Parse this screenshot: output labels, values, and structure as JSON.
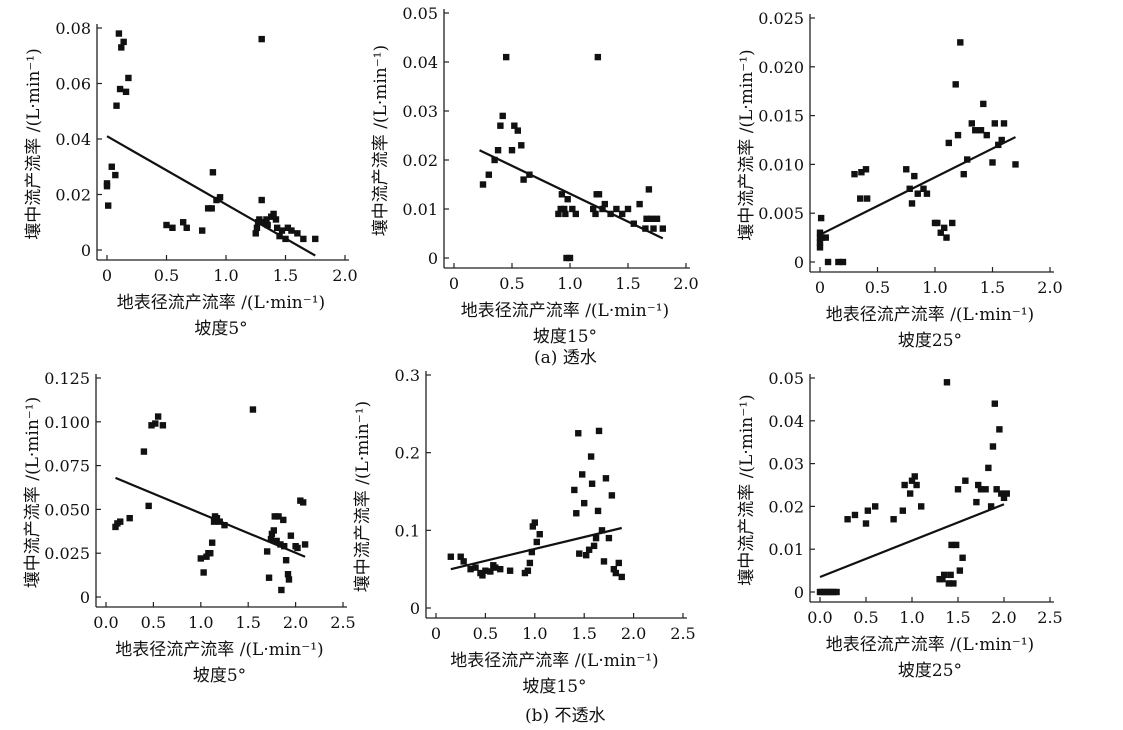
{
  "groups": [
    {
      "caption": "(a) 透水"
    },
    {
      "caption": "(b) 不透水"
    }
  ],
  "chart_data": [
    {
      "type": "scatter",
      "xlabel": "地表径流产流率 /(L·min⁻¹)",
      "ylabel": "壤中流产流率 /(L·min⁻¹)",
      "subcaption": "坡度5°",
      "xlim": [
        0,
        2.0
      ],
      "ylim": [
        0,
        0.08
      ],
      "xticks": [
        0,
        0.5,
        1.0,
        1.5,
        2.0
      ],
      "xtick_labels": [
        "0",
        "0.5",
        "1.0",
        "1.5",
        "2.0"
      ],
      "yticks": [
        0,
        0.02,
        0.04,
        0.06,
        0.08
      ],
      "ytick_labels": [
        "0",
        "0.02",
        "0.04",
        "0.06",
        "0.08"
      ],
      "points": [
        [
          0.0,
          0.024
        ],
        [
          0.0,
          0.023
        ],
        [
          0.01,
          0.016
        ],
        [
          0.04,
          0.03
        ],
        [
          0.07,
          0.027
        ],
        [
          0.08,
          0.052
        ],
        [
          0.1,
          0.078
        ],
        [
          0.11,
          0.058
        ],
        [
          0.12,
          0.073
        ],
        [
          0.14,
          0.075
        ],
        [
          0.16,
          0.057
        ],
        [
          0.18,
          0.062
        ],
        [
          0.5,
          0.009
        ],
        [
          0.55,
          0.008
        ],
        [
          0.64,
          0.01
        ],
        [
          0.67,
          0.008
        ],
        [
          0.8,
          0.007
        ],
        [
          0.85,
          0.015
        ],
        [
          0.88,
          0.015
        ],
        [
          0.89,
          0.028
        ],
        [
          0.92,
          0.018
        ],
        [
          0.95,
          0.019
        ],
        [
          1.25,
          0.006
        ],
        [
          1.26,
          0.008
        ],
        [
          1.27,
          0.01
        ],
        [
          1.28,
          0.011
        ],
        [
          1.3,
          0.018
        ],
        [
          1.3,
          0.076
        ],
        [
          1.32,
          0.01
        ],
        [
          1.34,
          0.011
        ],
        [
          1.35,
          0.009
        ],
        [
          1.38,
          0.012
        ],
        [
          1.4,
          0.013
        ],
        [
          1.42,
          0.011
        ],
        [
          1.43,
          0.008
        ],
        [
          1.45,
          0.005
        ],
        [
          1.47,
          0.007
        ],
        [
          1.5,
          0.004
        ],
        [
          1.52,
          0.008
        ],
        [
          1.55,
          0.007
        ],
        [
          1.6,
          0.006
        ],
        [
          1.65,
          0.004
        ],
        [
          1.75,
          0.004
        ]
      ],
      "trendline": [
        [
          0.0,
          0.041
        ],
        [
          1.75,
          -0.002
        ]
      ]
    },
    {
      "type": "scatter",
      "xlabel": "地表径流产流率 /(L·min⁻¹)",
      "ylabel": "壤中流产流率 /(L·min⁻¹)",
      "subcaption": "坡度15°",
      "xlim": [
        0,
        2.0
      ],
      "ylim": [
        0,
        0.05
      ],
      "xticks": [
        0,
        0.5,
        1.0,
        1.5,
        2.0
      ],
      "xtick_labels": [
        "0",
        "0.5",
        "1.0",
        "1.5",
        "2.0"
      ],
      "yticks": [
        0,
        0.01,
        0.02,
        0.03,
        0.04,
        0.05
      ],
      "ytick_labels": [
        "0",
        "0.01",
        "0.02",
        "0.03",
        "0.04",
        "0.05"
      ],
      "points": [
        [
          0.25,
          0.015
        ],
        [
          0.3,
          0.017
        ],
        [
          0.35,
          0.02
        ],
        [
          0.38,
          0.022
        ],
        [
          0.4,
          0.027
        ],
        [
          0.42,
          0.029
        ],
        [
          0.45,
          0.041
        ],
        [
          0.5,
          0.022
        ],
        [
          0.52,
          0.027
        ],
        [
          0.55,
          0.026
        ],
        [
          0.58,
          0.023
        ],
        [
          0.6,
          0.016
        ],
        [
          0.65,
          0.017
        ],
        [
          0.9,
          0.009
        ],
        [
          0.92,
          0.01
        ],
        [
          0.93,
          0.013
        ],
        [
          0.95,
          0.01
        ],
        [
          0.96,
          0.009
        ],
        [
          0.97,
          0.0
        ],
        [
          0.98,
          0.012
        ],
        [
          1.0,
          0.0
        ],
        [
          1.02,
          0.01
        ],
        [
          1.05,
          0.009
        ],
        [
          1.2,
          0.01
        ],
        [
          1.22,
          0.009
        ],
        [
          1.23,
          0.013
        ],
        [
          1.24,
          0.041
        ],
        [
          1.25,
          0.013
        ],
        [
          1.28,
          0.01
        ],
        [
          1.3,
          0.011
        ],
        [
          1.35,
          0.009
        ],
        [
          1.4,
          0.01
        ],
        [
          1.45,
          0.009
        ],
        [
          1.5,
          0.01
        ],
        [
          1.55,
          0.007
        ],
        [
          1.6,
          0.011
        ],
        [
          1.65,
          0.006
        ],
        [
          1.66,
          0.008
        ],
        [
          1.68,
          0.014
        ],
        [
          1.7,
          0.008
        ],
        [
          1.72,
          0.006
        ],
        [
          1.75,
          0.008
        ],
        [
          1.8,
          0.006
        ]
      ],
      "trendline": [
        [
          0.22,
          0.022
        ],
        [
          1.8,
          0.004
        ]
      ]
    },
    {
      "type": "scatter",
      "xlabel": "地表径流产流率 /(L·min⁻¹)",
      "ylabel": "壤中流产流率 /(L·min⁻¹)",
      "subcaption": "坡度25°",
      "xlim": [
        0,
        2.0
      ],
      "ylim": [
        0,
        0.025
      ],
      "xticks": [
        0,
        0.5,
        1.0,
        1.5,
        2.0
      ],
      "xtick_labels": [
        "0",
        "0.5",
        "1.0",
        "1.5",
        "2.0"
      ],
      "yticks": [
        0,
        0.005,
        0.01,
        0.015,
        0.02,
        0.025
      ],
      "ytick_labels": [
        "0",
        "0.005",
        "0.010",
        "0.015",
        "0.020",
        "0.025"
      ],
      "points": [
        [
          0.0,
          0.0015
        ],
        [
          0.0,
          0.002
        ],
        [
          0.0,
          0.0025
        ],
        [
          0.0,
          0.003
        ],
        [
          0.01,
          0.0045
        ],
        [
          0.02,
          0.0025
        ],
        [
          0.05,
          0.0025
        ],
        [
          0.07,
          0.0
        ],
        [
          0.16,
          0.0
        ],
        [
          0.2,
          0.0
        ],
        [
          0.3,
          0.009
        ],
        [
          0.35,
          0.0065
        ],
        [
          0.36,
          0.0092
        ],
        [
          0.4,
          0.0095
        ],
        [
          0.41,
          0.0065
        ],
        [
          0.75,
          0.0095
        ],
        [
          0.78,
          0.0075
        ],
        [
          0.8,
          0.006
        ],
        [
          0.82,
          0.0088
        ],
        [
          0.85,
          0.007
        ],
        [
          0.9,
          0.0075
        ],
        [
          0.93,
          0.007
        ],
        [
          1.0,
          0.004
        ],
        [
          1.02,
          0.004
        ],
        [
          1.05,
          0.003
        ],
        [
          1.08,
          0.0035
        ],
        [
          1.1,
          0.0025
        ],
        [
          1.12,
          0.0122
        ],
        [
          1.15,
          0.004
        ],
        [
          1.18,
          0.0182
        ],
        [
          1.2,
          0.013
        ],
        [
          1.22,
          0.0225
        ],
        [
          1.25,
          0.009
        ],
        [
          1.28,
          0.0105
        ],
        [
          1.32,
          0.0142
        ],
        [
          1.35,
          0.0135
        ],
        [
          1.4,
          0.0135
        ],
        [
          1.42,
          0.0162
        ],
        [
          1.45,
          0.013
        ],
        [
          1.5,
          0.0102
        ],
        [
          1.52,
          0.0142
        ],
        [
          1.55,
          0.012
        ],
        [
          1.58,
          0.0125
        ],
        [
          1.6,
          0.0142
        ],
        [
          1.7,
          0.01
        ]
      ],
      "trendline": [
        [
          0.0,
          0.0028
        ],
        [
          1.7,
          0.0128
        ]
      ]
    },
    {
      "type": "scatter",
      "xlabel": "地表径流产流率 /(L·min⁻¹)",
      "ylabel": "壤中流产流率 /(L·min⁻¹)",
      "subcaption": "坡度5°",
      "xlim": [
        0,
        2.5
      ],
      "ylim": [
        0,
        0.125
      ],
      "xticks": [
        0,
        0.5,
        1.0,
        1.5,
        2.0,
        2.5
      ],
      "xtick_labels": [
        "0.0",
        "0.5",
        "1.0",
        "1.5",
        "2.0",
        "2.5"
      ],
      "yticks": [
        0,
        0.025,
        0.05,
        0.075,
        0.1,
        0.125
      ],
      "ytick_labels": [
        "0",
        "0.025",
        "0.050",
        "0.075",
        "0.100",
        "0.125"
      ],
      "points": [
        [
          0.1,
          0.04
        ],
        [
          0.12,
          0.042
        ],
        [
          0.15,
          0.043
        ],
        [
          0.25,
          0.045
        ],
        [
          0.4,
          0.083
        ],
        [
          0.45,
          0.052
        ],
        [
          0.48,
          0.098
        ],
        [
          0.52,
          0.099
        ],
        [
          0.55,
          0.103
        ],
        [
          0.6,
          0.098
        ],
        [
          1.0,
          0.022
        ],
        [
          1.03,
          0.014
        ],
        [
          1.06,
          0.023
        ],
        [
          1.08,
          0.025
        ],
        [
          1.1,
          0.025
        ],
        [
          1.12,
          0.031
        ],
        [
          1.14,
          0.043
        ],
        [
          1.15,
          0.046
        ],
        [
          1.17,
          0.045
        ],
        [
          1.2,
          0.043
        ],
        [
          1.25,
          0.041
        ],
        [
          1.55,
          0.107
        ],
        [
          1.7,
          0.026
        ],
        [
          1.72,
          0.011
        ],
        [
          1.74,
          0.033
        ],
        [
          1.75,
          0.036
        ],
        [
          1.77,
          0.038
        ],
        [
          1.78,
          0.046
        ],
        [
          1.8,
          0.032
        ],
        [
          1.82,
          0.046
        ],
        [
          1.84,
          0.03
        ],
        [
          1.85,
          0.004
        ],
        [
          1.87,
          0.044
        ],
        [
          1.88,
          0.029
        ],
        [
          1.9,
          0.021
        ],
        [
          1.92,
          0.013
        ],
        [
          1.93,
          0.01
        ],
        [
          1.95,
          0.035
        ],
        [
          2.0,
          0.029
        ],
        [
          2.02,
          0.028
        ],
        [
          2.05,
          0.055
        ],
        [
          2.08,
          0.054
        ],
        [
          2.1,
          0.03
        ]
      ],
      "trendline": [
        [
          0.1,
          0.068
        ],
        [
          2.1,
          0.023
        ]
      ]
    },
    {
      "type": "scatter",
      "xlabel": "地表径流产流率 /(L·min⁻¹)",
      "ylabel": "壤中流产流率 /(L·min⁻¹)",
      "subcaption": "坡度15°",
      "xlim": [
        0,
        2.5
      ],
      "ylim": [
        0,
        0.3
      ],
      "xticks": [
        0,
        0.5,
        1.0,
        1.5,
        2.0,
        2.5
      ],
      "xtick_labels": [
        "0",
        "0.5",
        "1.0",
        "1.5",
        "2.0",
        "2.5"
      ],
      "yticks": [
        0,
        0.1,
        0.2,
        0.3
      ],
      "ytick_labels": [
        "0",
        "0.1",
        "0.2",
        "0.3"
      ],
      "points": [
        [
          0.15,
          0.066
        ],
        [
          0.25,
          0.066
        ],
        [
          0.28,
          0.06
        ],
        [
          0.35,
          0.05
        ],
        [
          0.4,
          0.052
        ],
        [
          0.45,
          0.045
        ],
        [
          0.47,
          0.042
        ],
        [
          0.5,
          0.048
        ],
        [
          0.55,
          0.047
        ],
        [
          0.58,
          0.055
        ],
        [
          0.6,
          0.052
        ],
        [
          0.65,
          0.05
        ],
        [
          0.75,
          0.048
        ],
        [
          0.9,
          0.045
        ],
        [
          0.93,
          0.048
        ],
        [
          0.95,
          0.058
        ],
        [
          0.97,
          0.072
        ],
        [
          0.98,
          0.105
        ],
        [
          1.0,
          0.11
        ],
        [
          1.02,
          0.085
        ],
        [
          1.05,
          0.095
        ],
        [
          1.4,
          0.152
        ],
        [
          1.42,
          0.122
        ],
        [
          1.44,
          0.225
        ],
        [
          1.45,
          0.07
        ],
        [
          1.48,
          0.172
        ],
        [
          1.5,
          0.135
        ],
        [
          1.52,
          0.068
        ],
        [
          1.55,
          0.075
        ],
        [
          1.57,
          0.195
        ],
        [
          1.58,
          0.16
        ],
        [
          1.6,
          0.08
        ],
        [
          1.62,
          0.09
        ],
        [
          1.64,
          0.125
        ],
        [
          1.65,
          0.228
        ],
        [
          1.68,
          0.1
        ],
        [
          1.7,
          0.06
        ],
        [
          1.72,
          0.167
        ],
        [
          1.75,
          0.09
        ],
        [
          1.78,
          0.145
        ],
        [
          1.8,
          0.05
        ],
        [
          1.82,
          0.045
        ],
        [
          1.85,
          0.058
        ],
        [
          1.88,
          0.04
        ]
      ],
      "trendline": [
        [
          0.15,
          0.05
        ],
        [
          1.88,
          0.103
        ]
      ]
    },
    {
      "type": "scatter",
      "xlabel": "地表径流产流率 /(L·min⁻¹)",
      "ylabel": "壤中流产流率 /(L·min⁻¹)",
      "subcaption": "坡度25°",
      "xlim": [
        0,
        2.5
      ],
      "ylim": [
        0,
        0.05
      ],
      "xticks": [
        0,
        0.5,
        1.0,
        1.5,
        2.0,
        2.5
      ],
      "xtick_labels": [
        "0.0",
        "0.5",
        "1.0",
        "1.5",
        "2.0",
        "2.5"
      ],
      "yticks": [
        0,
        0.01,
        0.02,
        0.03,
        0.04,
        0.05
      ],
      "ytick_labels": [
        "0",
        "0.01",
        "0.02",
        "0.03",
        "0.04",
        "0.05"
      ],
      "points": [
        [
          0.0,
          0.0
        ],
        [
          0.03,
          0.0
        ],
        [
          0.06,
          0.0
        ],
        [
          0.09,
          0.0
        ],
        [
          0.12,
          0.0
        ],
        [
          0.15,
          0.0
        ],
        [
          0.18,
          0.0
        ],
        [
          0.3,
          0.017
        ],
        [
          0.38,
          0.018
        ],
        [
          0.5,
          0.016
        ],
        [
          0.52,
          0.019
        ],
        [
          0.6,
          0.02
        ],
        [
          0.8,
          0.017
        ],
        [
          0.9,
          0.019
        ],
        [
          0.92,
          0.025
        ],
        [
          0.98,
          0.023
        ],
        [
          1.0,
          0.026
        ],
        [
          1.03,
          0.027
        ],
        [
          1.05,
          0.025
        ],
        [
          1.1,
          0.02
        ],
        [
          1.3,
          0.003
        ],
        [
          1.33,
          0.003
        ],
        [
          1.35,
          0.004
        ],
        [
          1.38,
          0.049
        ],
        [
          1.4,
          0.002
        ],
        [
          1.42,
          0.004
        ],
        [
          1.43,
          0.011
        ],
        [
          1.45,
          0.002
        ],
        [
          1.48,
          0.011
        ],
        [
          1.5,
          0.024
        ],
        [
          1.52,
          0.005
        ],
        [
          1.55,
          0.008
        ],
        [
          1.58,
          0.026
        ],
        [
          1.7,
          0.021
        ],
        [
          1.72,
          0.025
        ],
        [
          1.75,
          0.024
        ],
        [
          1.8,
          0.024
        ],
        [
          1.83,
          0.029
        ],
        [
          1.86,
          0.02
        ],
        [
          1.88,
          0.034
        ],
        [
          1.9,
          0.044
        ],
        [
          1.92,
          0.024
        ],
        [
          1.95,
          0.038
        ],
        [
          1.97,
          0.023
        ],
        [
          2.0,
          0.022
        ],
        [
          2.03,
          0.023
        ]
      ],
      "trendline": [
        [
          0.0,
          0.0035
        ],
        [
          2.0,
          0.0205
        ]
      ]
    }
  ]
}
